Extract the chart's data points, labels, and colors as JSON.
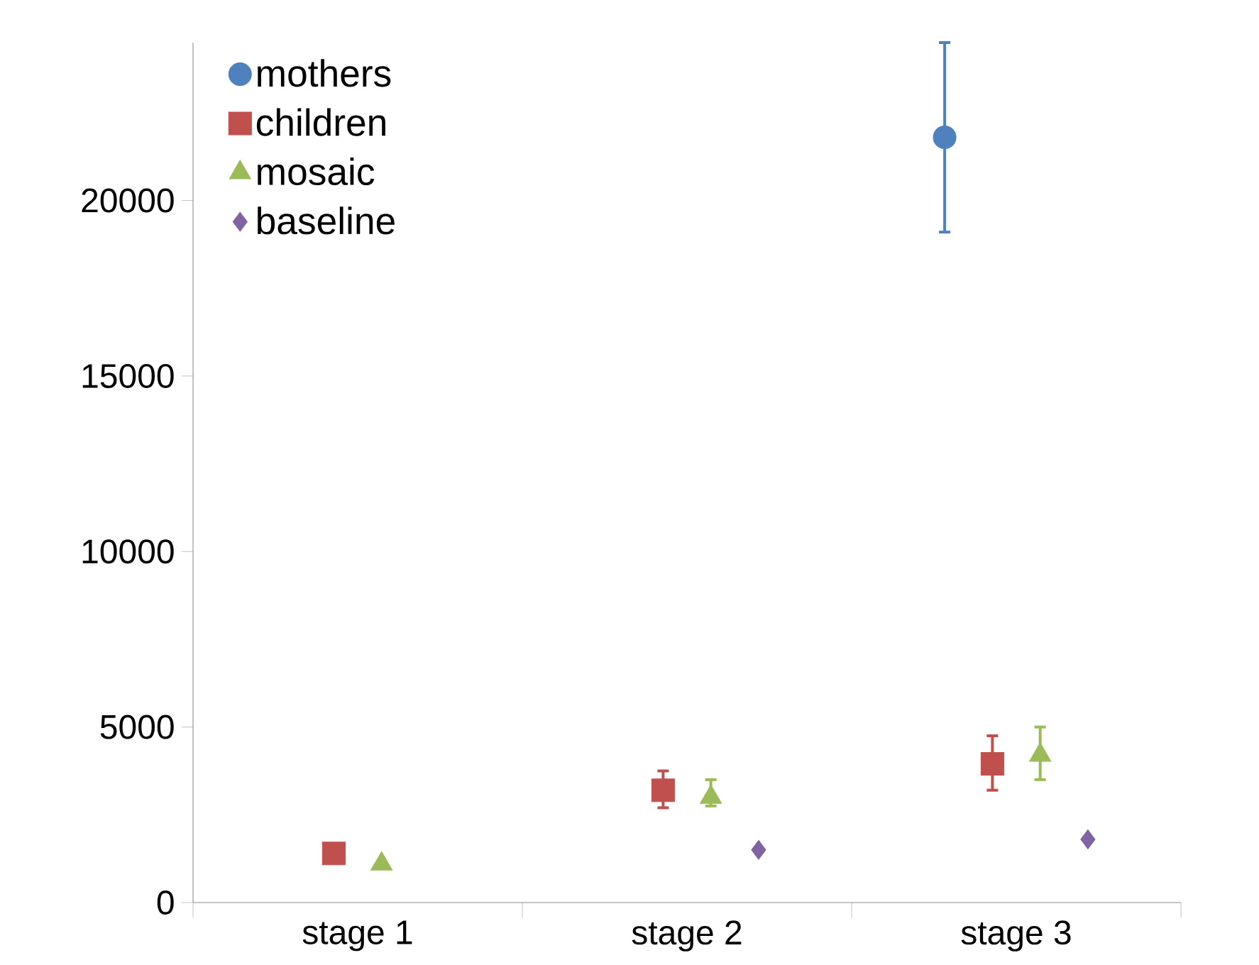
{
  "chart_data": {
    "type": "scatter",
    "categories": [
      "stage 1",
      "stage 2",
      "stage 3"
    ],
    "series": [
      {
        "name": "mothers",
        "color": "#4f81bd",
        "marker": "circle",
        "values": [
          null,
          null,
          21800
        ],
        "errors": [
          null,
          null,
          [
            19100,
            24500
          ]
        ]
      },
      {
        "name": "children",
        "color": "#c0504d",
        "marker": "square",
        "values": [
          1400,
          3200,
          3950
        ],
        "errors": [
          null,
          [
            2700,
            3750
          ],
          [
            3200,
            4750
          ]
        ]
      },
      {
        "name": "mosaic",
        "color": "#9bbb59",
        "marker": "triangle",
        "values": [
          1100,
          3000,
          4200
        ],
        "errors": [
          null,
          [
            2750,
            3500
          ],
          [
            3500,
            5000
          ]
        ]
      },
      {
        "name": "baseline",
        "color": "#8064a2",
        "marker": "diamond",
        "values": [
          null,
          1500,
          1800
        ]
      }
    ],
    "ylim": [
      0,
      24500
    ],
    "yticks": [
      0,
      5000,
      10000,
      15000,
      20000
    ],
    "grid": false,
    "legend": "top left"
  }
}
